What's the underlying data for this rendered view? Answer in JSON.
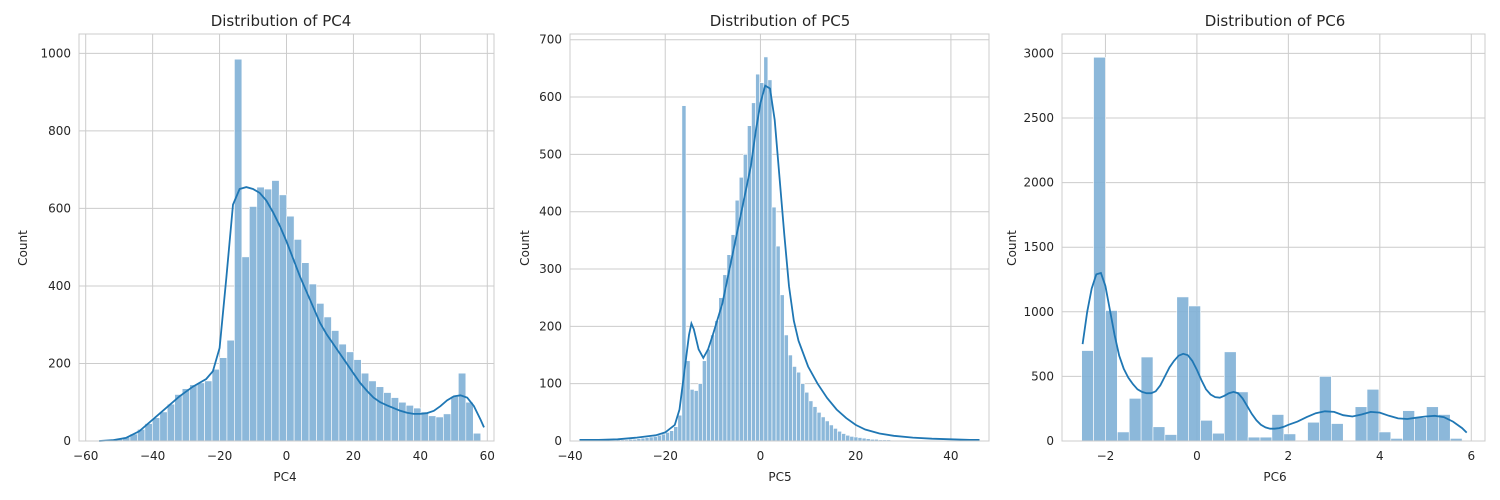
{
  "chart_data": [
    {
      "type": "histogram",
      "title": "Distribution of PC4",
      "xlabel": "PC4",
      "ylabel": "Count",
      "xlim": [
        -62,
        62
      ],
      "ylim": [
        0,
        1050
      ],
      "xticks": [
        -60,
        -40,
        -20,
        0,
        20,
        40,
        60
      ],
      "yticks": [
        0,
        200,
        400,
        600,
        800,
        1000
      ],
      "grid": true,
      "bar_color": "#7fb0d6",
      "line_color": "#1f77b4",
      "bin_edges": [
        -55.7,
        -53.47,
        -51.24,
        -49.01,
        -46.78,
        -44.55,
        -42.32,
        -40.09,
        -37.86,
        -35.63,
        -33.4,
        -31.17,
        -28.94,
        -26.71,
        -24.48,
        -22.25,
        -20.02,
        -17.79,
        -15.56,
        -13.33,
        -11.1,
        -8.87,
        -6.64,
        -4.41,
        -2.18,
        0.05,
        2.28,
        4.51,
        6.74,
        8.97,
        11.2,
        13.43,
        15.66,
        17.89,
        20.12,
        22.35,
        24.58,
        26.81,
        29.04,
        31.27,
        33.5,
        35.73,
        37.96,
        40.19,
        42.42,
        44.65,
        46.88,
        49.11,
        51.34,
        53.58,
        55.81,
        58.04
      ],
      "counts": [
        2,
        3,
        5,
        10,
        18,
        30,
        45,
        60,
        75,
        95,
        120,
        135,
        145,
        150,
        155,
        185,
        215,
        260,
        985,
        475,
        605,
        655,
        650,
        672,
        635,
        580,
        520,
        460,
        405,
        355,
        320,
        285,
        250,
        230,
        210,
        175,
        155,
        140,
        125,
        112,
        100,
        92,
        85,
        75,
        65,
        62,
        70,
        115,
        175,
        100,
        20
      ],
      "kde": [
        [
          -56,
          0
        ],
        [
          -52,
          2
        ],
        [
          -48,
          8
        ],
        [
          -44,
          25
        ],
        [
          -40,
          55
        ],
        [
          -36,
          85
        ],
        [
          -32,
          115
        ],
        [
          -28,
          140
        ],
        [
          -24,
          160
        ],
        [
          -22,
          180
        ],
        [
          -20,
          240
        ],
        [
          -18,
          420
        ],
        [
          -16,
          610
        ],
        [
          -14,
          650
        ],
        [
          -12,
          655
        ],
        [
          -10,
          650
        ],
        [
          -8,
          640
        ],
        [
          -6,
          620
        ],
        [
          -4,
          590
        ],
        [
          -2,
          555
        ],
        [
          0,
          515
        ],
        [
          2,
          470
        ],
        [
          4,
          425
        ],
        [
          6,
          385
        ],
        [
          8,
          345
        ],
        [
          10,
          305
        ],
        [
          12,
          275
        ],
        [
          14,
          250
        ],
        [
          16,
          225
        ],
        [
          18,
          200
        ],
        [
          20,
          175
        ],
        [
          22,
          150
        ],
        [
          24,
          130
        ],
        [
          26,
          112
        ],
        [
          28,
          100
        ],
        [
          30,
          92
        ],
        [
          32,
          85
        ],
        [
          34,
          78
        ],
        [
          36,
          73
        ],
        [
          38,
          70
        ],
        [
          40,
          70
        ],
        [
          42,
          72
        ],
        [
          44,
          78
        ],
        [
          46,
          90
        ],
        [
          48,
          105
        ],
        [
          50,
          115
        ],
        [
          52,
          118
        ],
        [
          54,
          112
        ],
        [
          56,
          90
        ],
        [
          58,
          55
        ],
        [
          59,
          35
        ]
      ]
    },
    {
      "type": "histogram",
      "title": "Distribution of PC5",
      "xlabel": "PC5",
      "ylabel": "Count",
      "xlim": [
        -40,
        48
      ],
      "ylim": [
        0,
        710
      ],
      "xticks": [
        -40,
        -20,
        0,
        20,
        40
      ],
      "yticks": [
        0,
        100,
        200,
        300,
        400,
        500,
        600,
        700
      ],
      "grid": true,
      "bar_color": "#7fb0d6",
      "line_color": "#1f77b4",
      "bin_edges": [
        -38.0,
        -37.14,
        -36.28,
        -35.42,
        -34.56,
        -33.7,
        -32.84,
        -31.98,
        -31.12,
        -30.26,
        -29.4,
        -28.54,
        -27.68,
        -26.82,
        -25.96,
        -25.1,
        -24.24,
        -23.38,
        -22.52,
        -21.66,
        -20.8,
        -19.94,
        -19.08,
        -18.22,
        -17.36,
        -16.5,
        -15.64,
        -14.78,
        -13.92,
        -13.06,
        -12.2,
        -11.34,
        -10.48,
        -9.62,
        -8.76,
        -7.9,
        -7.04,
        -6.18,
        -5.32,
        -4.46,
        -3.6,
        -2.74,
        -1.88,
        -1.02,
        -0.16,
        0.7,
        1.56,
        2.42,
        3.28,
        4.14,
        5.0,
        5.86,
        6.72,
        7.58,
        8.44,
        9.3,
        10.16,
        11.02,
        11.88,
        12.74,
        13.6,
        14.46,
        15.32,
        16.18,
        17.04,
        17.9,
        18.76,
        19.62,
        20.48,
        21.34,
        22.2,
        23.06,
        23.92,
        24.78,
        25.64,
        26.5,
        27.36,
        28.22,
        29.08,
        29.94,
        30.8,
        31.66,
        32.52,
        33.38,
        34.24,
        35.1,
        35.96,
        36.82,
        37.68,
        38.54,
        39.4,
        40.26,
        41.12,
        41.98,
        42.84,
        43.7,
        44.56,
        45.42,
        46.28
      ],
      "counts": [
        1,
        1,
        1,
        1,
        1,
        1,
        1,
        1,
        1,
        2,
        2,
        2,
        3,
        3,
        4,
        5,
        6,
        7,
        8,
        10,
        12,
        15,
        18,
        25,
        45,
        585,
        140,
        90,
        88,
        100,
        140,
        160,
        185,
        210,
        250,
        290,
        325,
        360,
        420,
        460,
        500,
        550,
        590,
        640,
        625,
        670,
        630,
        408,
        340,
        255,
        185,
        150,
        130,
        120,
        100,
        85,
        70,
        60,
        50,
        42,
        35,
        28,
        22,
        17,
        13,
        10,
        8,
        7,
        6,
        5,
        4,
        3,
        3,
        2,
        2,
        2,
        1,
        1,
        1,
        1,
        1,
        1,
        1,
        1,
        1,
        1,
        1,
        1,
        1,
        1,
        1,
        1,
        1,
        1,
        1,
        1,
        1,
        1,
        1
      ],
      "kde": [
        [
          -38,
          2
        ],
        [
          -34,
          2
        ],
        [
          -30,
          3
        ],
        [
          -26,
          6
        ],
        [
          -22,
          10
        ],
        [
          -20,
          15
        ],
        [
          -18,
          28
        ],
        [
          -17,
          55
        ],
        [
          -16,
          120
        ],
        [
          -15,
          185
        ],
        [
          -14.5,
          205
        ],
        [
          -14,
          195
        ],
        [
          -13,
          160
        ],
        [
          -12,
          145
        ],
        [
          -11,
          160
        ],
        [
          -10,
          185
        ],
        [
          -8,
          240
        ],
        [
          -6,
          320
        ],
        [
          -4,
          400
        ],
        [
          -2,
          480
        ],
        [
          -1,
          540
        ],
        [
          0,
          590
        ],
        [
          1,
          620
        ],
        [
          2,
          615
        ],
        [
          3,
          560
        ],
        [
          4,
          460
        ],
        [
          5,
          360
        ],
        [
          6,
          270
        ],
        [
          7,
          210
        ],
        [
          8,
          175
        ],
        [
          10,
          130
        ],
        [
          12,
          100
        ],
        [
          14,
          75
        ],
        [
          16,
          55
        ],
        [
          18,
          40
        ],
        [
          20,
          28
        ],
        [
          22,
          20
        ],
        [
          25,
          13
        ],
        [
          28,
          9
        ],
        [
          32,
          6
        ],
        [
          36,
          4
        ],
        [
          40,
          3
        ],
        [
          44,
          2
        ],
        [
          46,
          2
        ]
      ]
    },
    {
      "type": "histogram",
      "title": "Distribution of PC6",
      "xlabel": "PC6",
      "ylabel": "Count",
      "xlim": [
        -2.95,
        6.3
      ],
      "ylim": [
        0,
        3150
      ],
      "xticks": [
        -2,
        0,
        2,
        4,
        6
      ],
      "yticks": [
        0,
        500,
        1000,
        1500,
        2000,
        2500,
        3000
      ],
      "grid": true,
      "bar_color": "#7fb0d6",
      "line_color": "#1f77b4",
      "bin_edges": [
        -2.52,
        -2.26,
        -2.0,
        -1.74,
        -1.48,
        -1.22,
        -0.96,
        -0.7,
        -0.44,
        -0.18,
        0.08,
        0.34,
        0.6,
        0.86,
        1.12,
        1.38,
        1.64,
        1.9,
        2.16,
        2.42,
        2.68,
        2.94,
        3.2,
        3.46,
        3.72,
        3.98,
        4.24,
        4.5,
        4.76,
        5.02,
        5.28,
        5.54,
        5.8
      ],
      "counts": [
        700,
        2970,
        1010,
        70,
        330,
        650,
        110,
        50,
        1115,
        1045,
        160,
        60,
        690,
        380,
        30,
        30,
        205,
        55,
        5,
        145,
        500,
        135,
        5,
        265,
        400,
        70,
        20,
        235,
        180,
        265,
        205,
        20
      ],
      "kde": [
        [
          -2.5,
          750
        ],
        [
          -2.4,
          1000
        ],
        [
          -2.3,
          1180
        ],
        [
          -2.2,
          1290
        ],
        [
          -2.1,
          1300
        ],
        [
          -2.0,
          1200
        ],
        [
          -1.9,
          1010
        ],
        [
          -1.8,
          820
        ],
        [
          -1.7,
          660
        ],
        [
          -1.6,
          560
        ],
        [
          -1.5,
          490
        ],
        [
          -1.4,
          440
        ],
        [
          -1.3,
          400
        ],
        [
          -1.2,
          380
        ],
        [
          -1.1,
          370
        ],
        [
          -1.0,
          370
        ],
        [
          -0.9,
          385
        ],
        [
          -0.8,
          430
        ],
        [
          -0.7,
          500
        ],
        [
          -0.6,
          570
        ],
        [
          -0.5,
          620
        ],
        [
          -0.4,
          660
        ],
        [
          -0.3,
          675
        ],
        [
          -0.2,
          665
        ],
        [
          -0.1,
          620
        ],
        [
          0.0,
          550
        ],
        [
          0.1,
          470
        ],
        [
          0.2,
          400
        ],
        [
          0.3,
          360
        ],
        [
          0.4,
          340
        ],
        [
          0.5,
          335
        ],
        [
          0.6,
          350
        ],
        [
          0.7,
          370
        ],
        [
          0.8,
          380
        ],
        [
          0.9,
          370
        ],
        [
          1.0,
          330
        ],
        [
          1.1,
          270
        ],
        [
          1.2,
          210
        ],
        [
          1.3,
          160
        ],
        [
          1.4,
          125
        ],
        [
          1.5,
          105
        ],
        [
          1.6,
          95
        ],
        [
          1.7,
          95
        ],
        [
          1.8,
          100
        ],
        [
          1.9,
          110
        ],
        [
          2.0,
          125
        ],
        [
          2.2,
          150
        ],
        [
          2.4,
          185
        ],
        [
          2.6,
          215
        ],
        [
          2.8,
          230
        ],
        [
          3.0,
          225
        ],
        [
          3.2,
          200
        ],
        [
          3.4,
          190
        ],
        [
          3.6,
          205
        ],
        [
          3.8,
          225
        ],
        [
          4.0,
          220
        ],
        [
          4.2,
          195
        ],
        [
          4.4,
          175
        ],
        [
          4.6,
          170
        ],
        [
          4.8,
          180
        ],
        [
          5.0,
          190
        ],
        [
          5.2,
          195
        ],
        [
          5.4,
          185
        ],
        [
          5.6,
          150
        ],
        [
          5.8,
          100
        ],
        [
          5.9,
          65
        ]
      ]
    }
  ]
}
